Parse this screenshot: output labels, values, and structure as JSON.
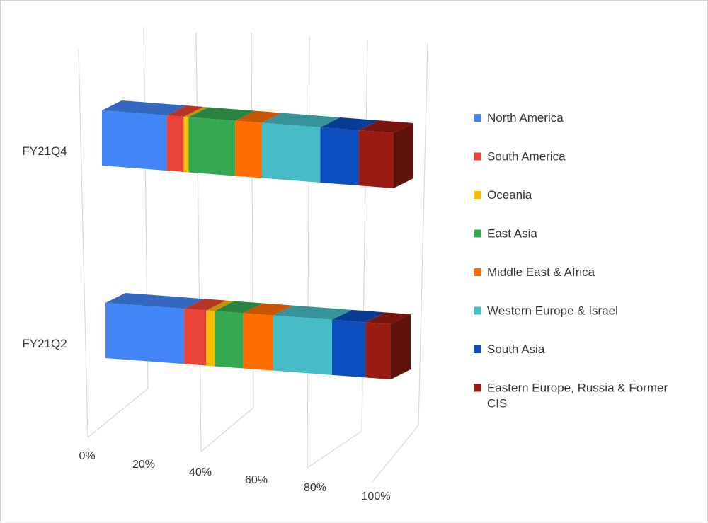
{
  "chart_data": {
    "type": "bar",
    "orientation": "horizontal",
    "stacked": "percent",
    "style": "3d",
    "categories": [
      "FY21Q4",
      "FY21Q2"
    ],
    "series": [
      {
        "name": "North America",
        "color": "#4285f4",
        "values": [
          19.5,
          23.5
        ]
      },
      {
        "name": "South America",
        "color": "#ea4335",
        "values": [
          5,
          6.5
        ]
      },
      {
        "name": "Oceania",
        "color": "#fbbc04",
        "values": [
          1.5,
          2.5
        ]
      },
      {
        "name": "East Asia",
        "color": "#34a853",
        "values": [
          14,
          8.5
        ]
      },
      {
        "name": "Middle East & Africa",
        "color": "#ff6d01",
        "values": [
          8,
          9
        ]
      },
      {
        "name": "Western Europe & Israel",
        "color": "#46bdc6",
        "values": [
          17.5,
          17.5
        ]
      },
      {
        "name": "South Asia",
        "color": "#0b4dbd",
        "values": [
          11.5,
          10
        ]
      },
      {
        "name": "Eastern Europe, Russia & Former CIS",
        "color": "#9a1b12",
        "values": [
          10.5,
          7.5
        ]
      }
    ],
    "xaxis": {
      "ticks": [
        "0%",
        "20%",
        "40%",
        "60%",
        "80%",
        "100%"
      ],
      "range": [
        0,
        100
      ]
    },
    "xlabel": "",
    "ylabel": "",
    "title": "",
    "grid": true,
    "legend_position": "right"
  }
}
